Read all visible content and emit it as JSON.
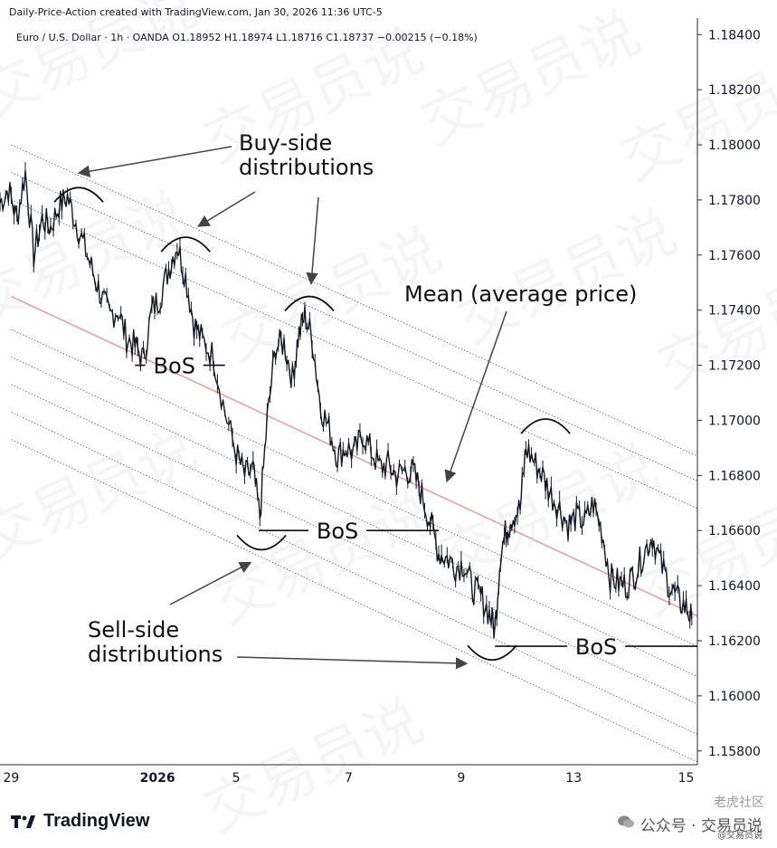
{
  "header": {
    "created_line": "Daily-Price-Action created with TradingView.com, Jan 30, 2026 11:36 UTC-5",
    "symbol_line": "Euro / U.S. Dollar · 1h · OANDA  O1.18952  H1.18974  L1.18716  C1.18737  −0.00215 (−0.18%)"
  },
  "footer": {
    "brand": "TradingView",
    "wechat_text": "公众号 · 交易员说",
    "wechat_sub": "@交易员说",
    "forum_mark": "老虎社区"
  },
  "watermark_text": "交易员说",
  "colors": {
    "price": "#131722",
    "mean_line": "#e7a1a1",
    "channel_lines": "#555555",
    "annotation": "#111111",
    "axis_border": "#2a2e39"
  },
  "chart_data": {
    "type": "line",
    "symbol": "Euro / U.S. Dollar",
    "timeframe": "1h",
    "ylim": [
      1.1575,
      1.1846
    ],
    "yticks": [
      1.184,
      1.182,
      1.18,
      1.178,
      1.176,
      1.174,
      1.172,
      1.17,
      1.168,
      1.166,
      1.164,
      1.162,
      1.16,
      1.158
    ],
    "ytick_labels": [
      "1.18400",
      "1.18200",
      "1.18000",
      "1.17800",
      "1.17600",
      "1.17400",
      "1.17200",
      "1.17000",
      "1.16800",
      "1.16600",
      "1.16400",
      "1.16200",
      "1.16000",
      "1.15800"
    ],
    "xticks": [
      {
        "label": "29",
        "x": 0.4
      },
      {
        "label": "2026",
        "x": 3.0
      },
      {
        "label": "5",
        "x": 4.4
      },
      {
        "label": "7",
        "x": 6.4
      },
      {
        "label": "9",
        "x": 8.4
      },
      {
        "label": "13",
        "x": 10.4
      },
      {
        "label": "15",
        "x": 12.4
      }
    ],
    "xlim": [
      0.2,
      12.6
    ],
    "price_path": [
      [
        0.2,
        1.1779
      ],
      [
        0.35,
        1.1784
      ],
      [
        0.5,
        1.1773
      ],
      [
        0.65,
        1.179
      ],
      [
        0.8,
        1.176
      ],
      [
        0.95,
        1.1773
      ],
      [
        1.1,
        1.177
      ],
      [
        1.25,
        1.1778
      ],
      [
        1.4,
        1.1781
      ],
      [
        1.55,
        1.1772
      ],
      [
        1.7,
        1.1763
      ],
      [
        1.85,
        1.1754
      ],
      [
        2.0,
        1.1745
      ],
      [
        2.15,
        1.1738
      ],
      [
        2.3,
        1.174
      ],
      [
        2.45,
        1.173
      ],
      [
        2.6,
        1.1727
      ],
      [
        2.75,
        1.1722
      ],
      [
        2.9,
        1.174
      ],
      [
        3.05,
        1.1745
      ],
      [
        3.2,
        1.1755
      ],
      [
        3.35,
        1.1764
      ],
      [
        3.5,
        1.1752
      ],
      [
        3.65,
        1.1735
      ],
      [
        3.8,
        1.1729
      ],
      [
        4.0,
        1.1723
      ],
      [
        4.2,
        1.1703
      ],
      [
        4.4,
        1.1688
      ],
      [
        4.55,
        1.168
      ],
      [
        4.7,
        1.1682
      ],
      [
        4.82,
        1.1665
      ],
      [
        4.95,
        1.17
      ],
      [
        5.1,
        1.1727
      ],
      [
        5.25,
        1.1728
      ],
      [
        5.4,
        1.1715
      ],
      [
        5.5,
        1.173
      ],
      [
        5.62,
        1.1738
      ],
      [
        5.75,
        1.173
      ],
      [
        5.9,
        1.1705
      ],
      [
        6.05,
        1.1697
      ],
      [
        6.2,
        1.1687
      ],
      [
        6.35,
        1.169
      ],
      [
        6.5,
        1.1688
      ],
      [
        6.65,
        1.1695
      ],
      [
        6.8,
        1.1689
      ],
      [
        6.95,
        1.1683
      ],
      [
        7.1,
        1.1684
      ],
      [
        7.25,
        1.168
      ],
      [
        7.4,
        1.1682
      ],
      [
        7.55,
        1.1681
      ],
      [
        7.7,
        1.1673
      ],
      [
        7.85,
        1.1663
      ],
      [
        8.0,
        1.1652
      ],
      [
        8.15,
        1.165
      ],
      [
        8.3,
        1.1647
      ],
      [
        8.45,
        1.1648
      ],
      [
        8.6,
        1.1639
      ],
      [
        8.75,
        1.1636
      ],
      [
        8.9,
        1.163
      ],
      [
        9.0,
        1.1624
      ],
      [
        9.1,
        1.1652
      ],
      [
        9.2,
        1.166
      ],
      [
        9.3,
        1.1665
      ],
      [
        9.45,
        1.1668
      ],
      [
        9.55,
        1.169
      ],
      [
        9.7,
        1.1685
      ],
      [
        9.85,
        1.168
      ],
      [
        10.0,
        1.1673
      ],
      [
        10.15,
        1.1668
      ],
      [
        10.3,
        1.1662
      ],
      [
        10.45,
        1.1665
      ],
      [
        10.6,
        1.1663
      ],
      [
        10.75,
        1.167
      ],
      [
        10.9,
        1.166
      ],
      [
        11.05,
        1.1643
      ],
      [
        11.2,
        1.1641
      ],
      [
        11.35,
        1.164
      ],
      [
        11.5,
        1.1645
      ],
      [
        11.65,
        1.1652
      ],
      [
        11.8,
        1.1658
      ],
      [
        11.95,
        1.1648
      ],
      [
        12.1,
        1.164
      ],
      [
        12.25,
        1.1635
      ],
      [
        12.4,
        1.1632
      ],
      [
        12.5,
        1.1628
      ]
    ],
    "mean_line": [
      [
        0.4,
        1.1745
      ],
      [
        12.6,
        1.1629
      ]
    ],
    "channel_lines": [
      [
        [
          0.4,
          1.18
        ],
        [
          12.6,
          1.1687
        ]
      ],
      [
        [
          0.4,
          1.179
        ],
        [
          12.6,
          1.1678
        ]
      ],
      [
        [
          0.4,
          1.178
        ],
        [
          12.6,
          1.1668
        ]
      ],
      [
        [
          0.4,
          1.1733
        ],
        [
          12.6,
          1.1618
        ]
      ],
      [
        [
          0.4,
          1.1723
        ],
        [
          12.6,
          1.1607
        ]
      ],
      [
        [
          0.4,
          1.1713
        ],
        [
          12.6,
          1.1597
        ]
      ],
      [
        [
          0.4,
          1.1703
        ],
        [
          12.6,
          1.1586
        ]
      ],
      [
        [
          0.4,
          1.1693
        ],
        [
          12.6,
          1.1576
        ]
      ]
    ],
    "annotations": {
      "buy_side_1": "Buy-side",
      "buy_side_2": "distributions",
      "mean_label": "Mean (average price)",
      "sell_side_1": "Sell-side",
      "sell_side_2": "distributions",
      "bos_labels": [
        {
          "text": "BoS",
          "x": 3.3,
          "y": 1.172,
          "line_x": [
            2.6,
            4.2
          ],
          "line_y": 1.172
        },
        {
          "text": "BoS",
          "x": 6.2,
          "y": 1.1659,
          "line_x": [
            4.8,
            8.0
          ],
          "line_y": 1.166
        },
        {
          "text": "BoS",
          "x": 10.8,
          "y": 1.1618,
          "line_x": [
            9.0,
            12.6
          ],
          "line_y": 1.1618
        }
      ],
      "tops": [
        {
          "x": 1.6,
          "y": 1.17825
        },
        {
          "x": 3.5,
          "y": 1.17645
        },
        {
          "x": 5.7,
          "y": 1.1743
        },
        {
          "x": 9.9,
          "y": 1.16985
        }
      ],
      "bottoms": [
        {
          "x": 4.85,
          "y": 1.1655
        },
        {
          "x": 8.95,
          "y": 1.1615
        }
      ]
    }
  }
}
